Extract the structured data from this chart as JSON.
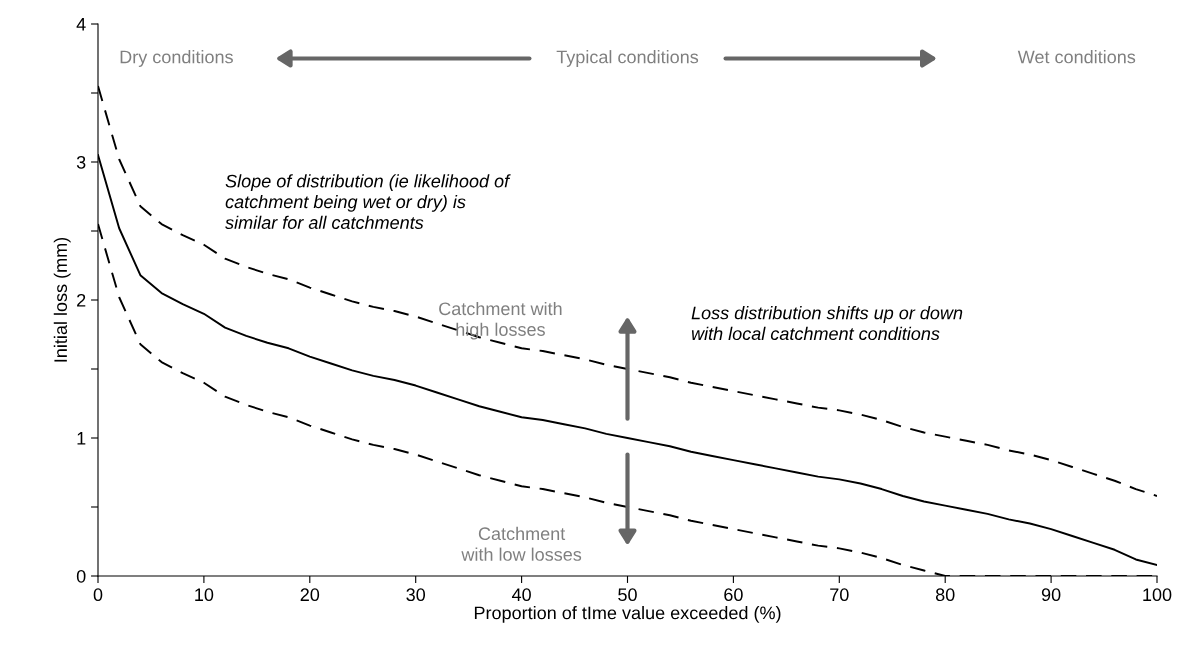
{
  "chart_data": {
    "type": "line",
    "xlabel": "Proportion of tIme value exceeded (%)",
    "ylabel": "Initial loss (mm)",
    "x": [
      0,
      2,
      4,
      6,
      8,
      10,
      12,
      14,
      16,
      18,
      20,
      22,
      24,
      26,
      28,
      30,
      32,
      34,
      36,
      38,
      40,
      42,
      44,
      46,
      48,
      50,
      52,
      54,
      56,
      58,
      60,
      62,
      64,
      66,
      68,
      70,
      72,
      74,
      76,
      78,
      80,
      82,
      84,
      86,
      88,
      90,
      92,
      94,
      96,
      98,
      100
    ],
    "series": [
      {
        "color": "#000000",
        "line_style": "solid",
        "values": [
          3.05,
          2.52,
          2.18,
          2.05,
          1.97,
          1.9,
          1.8,
          1.74,
          1.69,
          1.65,
          1.59,
          1.54,
          1.49,
          1.45,
          1.42,
          1.38,
          1.33,
          1.28,
          1.23,
          1.19,
          1.15,
          1.13,
          1.1,
          1.07,
          1.03,
          1.0,
          0.97,
          0.94,
          0.9,
          0.87,
          0.84,
          0.81,
          0.78,
          0.75,
          0.72,
          0.7,
          0.67,
          0.63,
          0.58,
          0.54,
          0.51,
          0.48,
          0.45,
          0.41,
          0.38,
          0.34,
          0.29,
          0.24,
          0.19,
          0.12,
          0.08
        ]
      },
      {
        "color": "#000000",
        "line_style": "dashed",
        "values": [
          3.55,
          3.02,
          2.68,
          2.55,
          2.47,
          2.4,
          2.3,
          2.24,
          2.19,
          2.15,
          2.09,
          2.04,
          1.99,
          1.95,
          1.92,
          1.88,
          1.83,
          1.78,
          1.73,
          1.69,
          1.65,
          1.63,
          1.6,
          1.57,
          1.53,
          1.5,
          1.47,
          1.44,
          1.4,
          1.37,
          1.34,
          1.31,
          1.28,
          1.25,
          1.22,
          1.2,
          1.17,
          1.13,
          1.08,
          1.04,
          1.01,
          0.98,
          0.95,
          0.91,
          0.88,
          0.84,
          0.79,
          0.74,
          0.69,
          0.63,
          0.58
        ]
      },
      {
        "color": "#000000",
        "line_style": "dashed",
        "values": [
          2.55,
          2.02,
          1.68,
          1.55,
          1.47,
          1.4,
          1.3,
          1.24,
          1.19,
          1.15,
          1.09,
          1.04,
          0.99,
          0.95,
          0.92,
          0.88,
          0.83,
          0.78,
          0.73,
          0.69,
          0.65,
          0.63,
          0.6,
          0.57,
          0.53,
          0.5,
          0.47,
          0.44,
          0.4,
          0.37,
          0.34,
          0.31,
          0.28,
          0.25,
          0.22,
          0.2,
          0.17,
          0.13,
          0.08,
          0.04,
          0.0,
          0.0,
          0.0,
          0.0,
          0.0,
          0.0,
          0.0,
          0.0,
          0.0,
          0.0,
          0.0
        ]
      }
    ],
    "xlim": [
      0,
      100
    ],
    "xticks": [
      0,
      10,
      20,
      30,
      40,
      50,
      60,
      70,
      80,
      90,
      100
    ],
    "ylim": [
      0,
      4
    ],
    "yticks": [
      0,
      {
        "value": 0.5,
        "label": null
      },
      1,
      {
        "value": 1.5,
        "label": null
      },
      2,
      {
        "value": 2.5,
        "label": null
      },
      3,
      {
        "value": 3.5,
        "label": null
      },
      4
    ],
    "grid": false,
    "legend": false,
    "marker": "none",
    "annotations": [
      "Dry conditions",
      "Typical conditions",
      "Wet conditions",
      "Slope of distribution (ie likelihood of\ncatchment being wet or dry) is\nsimilar for all catchments",
      "Catchment with\nhigh losses",
      "Loss distribution shifts up or down\nwith local catchment conditions",
      "Catchment\nwith low losses"
    ]
  }
}
